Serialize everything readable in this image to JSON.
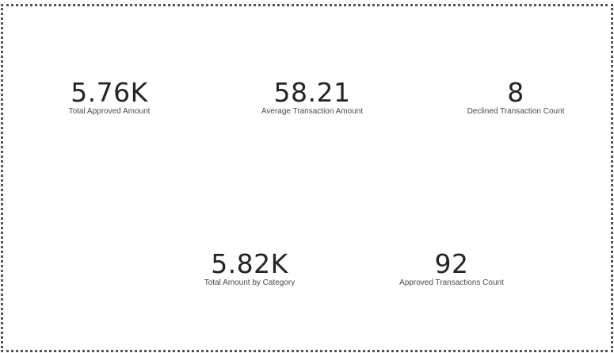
{
  "cards": [
    {
      "value": "5.76K",
      "label": "Total Approved Amount"
    },
    {
      "value": "58.21",
      "label": "Average Transaction Amount"
    },
    {
      "value": "8",
      "label": "Declined Transaction Count"
    },
    {
      "value": "5.82K",
      "label": "Total Amount by Category"
    },
    {
      "value": "92",
      "label": "Approved Transactions Count"
    }
  ],
  "colors": {
    "value_text": "#252423",
    "label_text": "#4a4a4a",
    "border": "#555555",
    "background": "#ffffff"
  }
}
